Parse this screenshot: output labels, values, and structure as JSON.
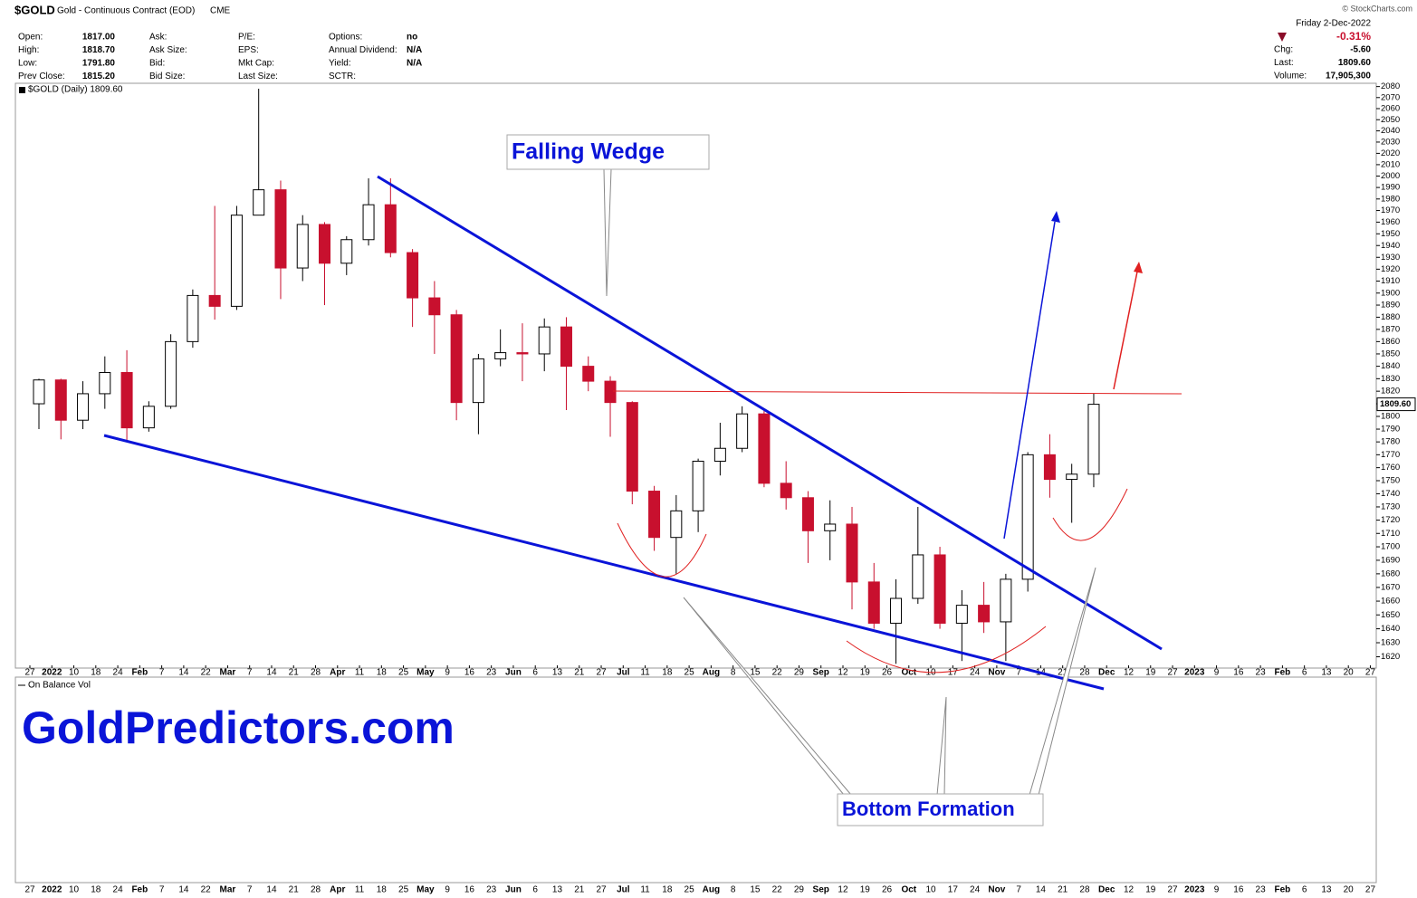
{
  "header": {
    "symbol": "$GOLD",
    "name": "Gold - Continuous Contract (EOD)",
    "exchange": "CME",
    "copyright": "© StockCharts.com",
    "stats": [
      [
        {
          "label": "Open:",
          "value": "1817.00"
        },
        {
          "label": "Ask:"
        },
        {
          "label": "P/E:"
        },
        {
          "label": "Options:",
          "value": "no"
        }
      ],
      [
        {
          "label": "High:",
          "value": "1818.70"
        },
        {
          "label": "Ask Size:"
        },
        {
          "label": "EPS:"
        },
        {
          "label": "Annual Dividend:",
          "value": "N/A"
        }
      ],
      [
        {
          "label": "Low:",
          "value": "1791.80"
        },
        {
          "label": "Bid:"
        },
        {
          "label": "Mkt Cap:"
        },
        {
          "label": "Yield:",
          "value": "N/A"
        }
      ],
      [
        {
          "label": "Prev Close:",
          "value": "1815.20"
        },
        {
          "label": "Bid Size:"
        },
        {
          "label": "Last Size:"
        },
        {
          "label": "SCTR:"
        }
      ]
    ],
    "quote": {
      "date": "Friday  2-Dec-2022",
      "change_pct": "-0.31%",
      "rows": [
        {
          "label": "Chg:",
          "value": "-5.60"
        },
        {
          "label": "Last:",
          "value": "1809.60"
        },
        {
          "label": "Volume:",
          "value": "17,905,300"
        }
      ]
    }
  },
  "chart_data": {
    "type": "candlestick",
    "legend": "$GOLD (Daily) 1809.60",
    "categories": [
      "27",
      "2022",
      "10",
      "18",
      "24",
      "Feb",
      "7",
      "14",
      "22",
      "Mar",
      "7",
      "14",
      "21",
      "28",
      "Apr",
      "11",
      "18",
      "25",
      "May",
      "9",
      "16",
      "23",
      "Jun",
      "6",
      "13",
      "21",
      "27",
      "Jul",
      "11",
      "18",
      "25",
      "Aug",
      "8",
      "15",
      "22",
      "29",
      "Sep",
      "12",
      "19",
      "26",
      "Oct",
      "10",
      "17",
      "24",
      "Nov",
      "7",
      "14",
      "21",
      "28",
      "Dec",
      "12",
      "19",
      "27",
      "2023",
      "9",
      "16",
      "23",
      "Feb",
      "6",
      "13",
      "20",
      "27"
    ],
    "ohlc": [
      [
        1810,
        1830,
        1790,
        1829
      ],
      [
        1829,
        1830,
        1782,
        1797
      ],
      [
        1797,
        1828,
        1790,
        1818
      ],
      [
        1818,
        1848,
        1806,
        1835
      ],
      [
        1835,
        1853,
        1780,
        1791
      ],
      [
        1791,
        1812,
        1788,
        1808
      ],
      [
        1808,
        1866,
        1806,
        1860
      ],
      [
        1860,
        1903,
        1855,
        1898
      ],
      [
        1898,
        1974,
        1878,
        1889
      ],
      [
        1889,
        1974,
        1886,
        1966
      ],
      [
        1966,
        2078,
        1966,
        1988
      ],
      [
        1988,
        1996,
        1895,
        1921
      ],
      [
        1921,
        1966,
        1910,
        1958
      ],
      [
        1958,
        1960,
        1890,
        1925
      ],
      [
        1925,
        1948,
        1915,
        1945
      ],
      [
        1945,
        1998,
        1940,
        1975
      ],
      [
        1975,
        1998,
        1930,
        1934
      ],
      [
        1934,
        1937,
        1872,
        1896
      ],
      [
        1896,
        1910,
        1850,
        1882
      ],
      [
        1882,
        1886,
        1797,
        1811
      ],
      [
        1811,
        1850,
        1786,
        1846
      ],
      [
        1846,
        1870,
        1840,
        1851
      ],
      [
        1851,
        1875,
        1828,
        1850
      ],
      [
        1850,
        1879,
        1836,
        1872
      ],
      [
        1872,
        1880,
        1805,
        1840
      ],
      [
        1840,
        1848,
        1820,
        1828
      ],
      [
        1828,
        1832,
        1784,
        1811
      ],
      [
        1811,
        1812,
        1732,
        1742
      ],
      [
        1742,
        1746,
        1697,
        1707
      ],
      [
        1707,
        1739,
        1680,
        1727
      ],
      [
        1727,
        1767,
        1711,
        1765
      ],
      [
        1765,
        1795,
        1754,
        1775
      ],
      [
        1775,
        1808,
        1772,
        1802
      ],
      [
        1802,
        1806,
        1745,
        1748
      ],
      [
        1748,
        1765,
        1728,
        1737
      ],
      [
        1737,
        1742,
        1688,
        1712
      ],
      [
        1712,
        1735,
        1690,
        1717
      ],
      [
        1717,
        1730,
        1654,
        1674
      ],
      [
        1674,
        1688,
        1640,
        1644
      ],
      [
        1644,
        1676,
        1615,
        1662
      ],
      [
        1662,
        1730,
        1658,
        1694
      ],
      [
        1694,
        1700,
        1640,
        1644
      ],
      [
        1644,
        1668,
        1617,
        1657
      ],
      [
        1657,
        1674,
        1637,
        1645
      ],
      [
        1645,
        1680,
        1617,
        1676
      ],
      [
        1676,
        1772,
        1667,
        1770
      ],
      [
        1770,
        1786,
        1737,
        1751
      ],
      [
        1751,
        1763,
        1718,
        1755
      ],
      [
        1755,
        1818,
        1745,
        1809.6
      ],
      null,
      null,
      null,
      null,
      null,
      null,
      null,
      null,
      null,
      null,
      null,
      null,
      null
    ],
    "ylim": [
      1612,
      2083
    ],
    "yticks": [
      1620,
      1630,
      1640,
      1650,
      1660,
      1670,
      1680,
      1690,
      1700,
      1710,
      1720,
      1730,
      1740,
      1750,
      1760,
      1770,
      1780,
      1790,
      1800,
      1810,
      1820,
      1830,
      1840,
      1850,
      1860,
      1870,
      1880,
      1890,
      1900,
      1910,
      1920,
      1930,
      1940,
      1950,
      1960,
      1970,
      1980,
      1990,
      2000,
      2010,
      2020,
      2030,
      2040,
      2050,
      2060,
      2070,
      2080
    ],
    "log_scale": true,
    "up_color": "#000000",
    "down_color": "#c8102e",
    "last_price": {
      "value": 1809.6,
      "label": "1809.60"
    },
    "lower_panel": "On Balance Vol",
    "annotations": {
      "wedge": "Falling Wedge",
      "bottom": "Bottom Formation"
    }
  },
  "watermark": "GoldPredictors.com"
}
